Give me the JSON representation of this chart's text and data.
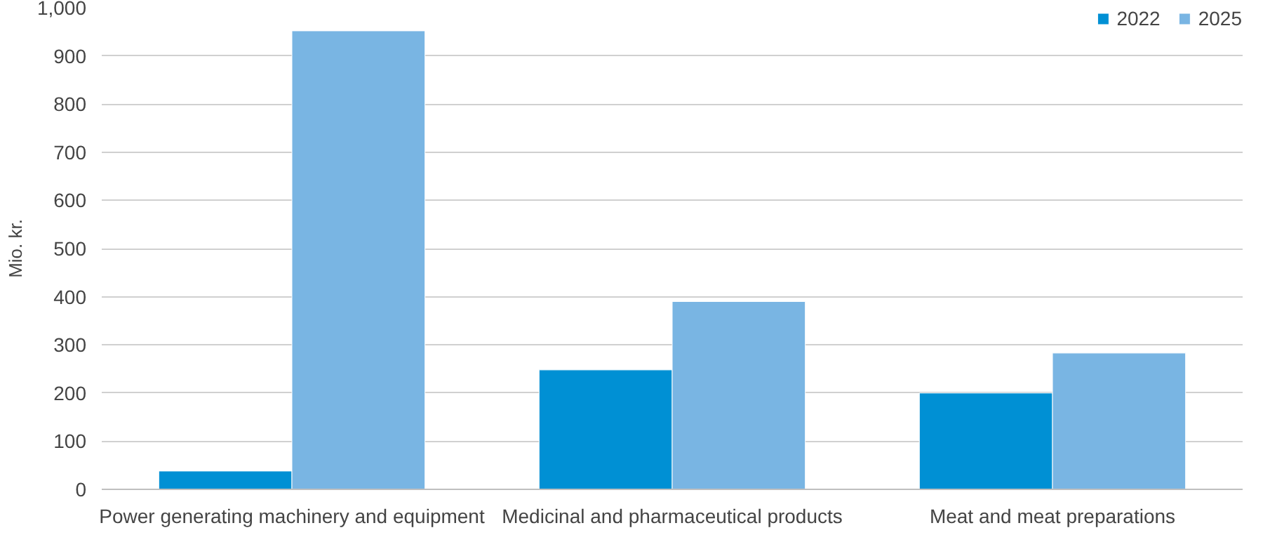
{
  "chart_data": {
    "type": "bar",
    "ylabel": "Mio. kr.",
    "categories": [
      "Power generating machinery and equipment",
      "Medicinal and pharmaceutical products",
      "Meat and meat preparations"
    ],
    "series": [
      {
        "name": "2022",
        "color": "#0090d4",
        "values": [
          38,
          248,
          200
        ]
      },
      {
        "name": "2025",
        "color": "#79b5e3",
        "values": [
          952,
          390,
          283
        ]
      }
    ],
    "ylim": [
      0,
      1000
    ],
    "yticks": [
      0,
      100,
      200,
      300,
      400,
      500,
      600,
      700,
      800,
      900,
      {
        "value": 1000,
        "label": "1,000"
      }
    ],
    "grid": "y",
    "legend": "top right"
  }
}
